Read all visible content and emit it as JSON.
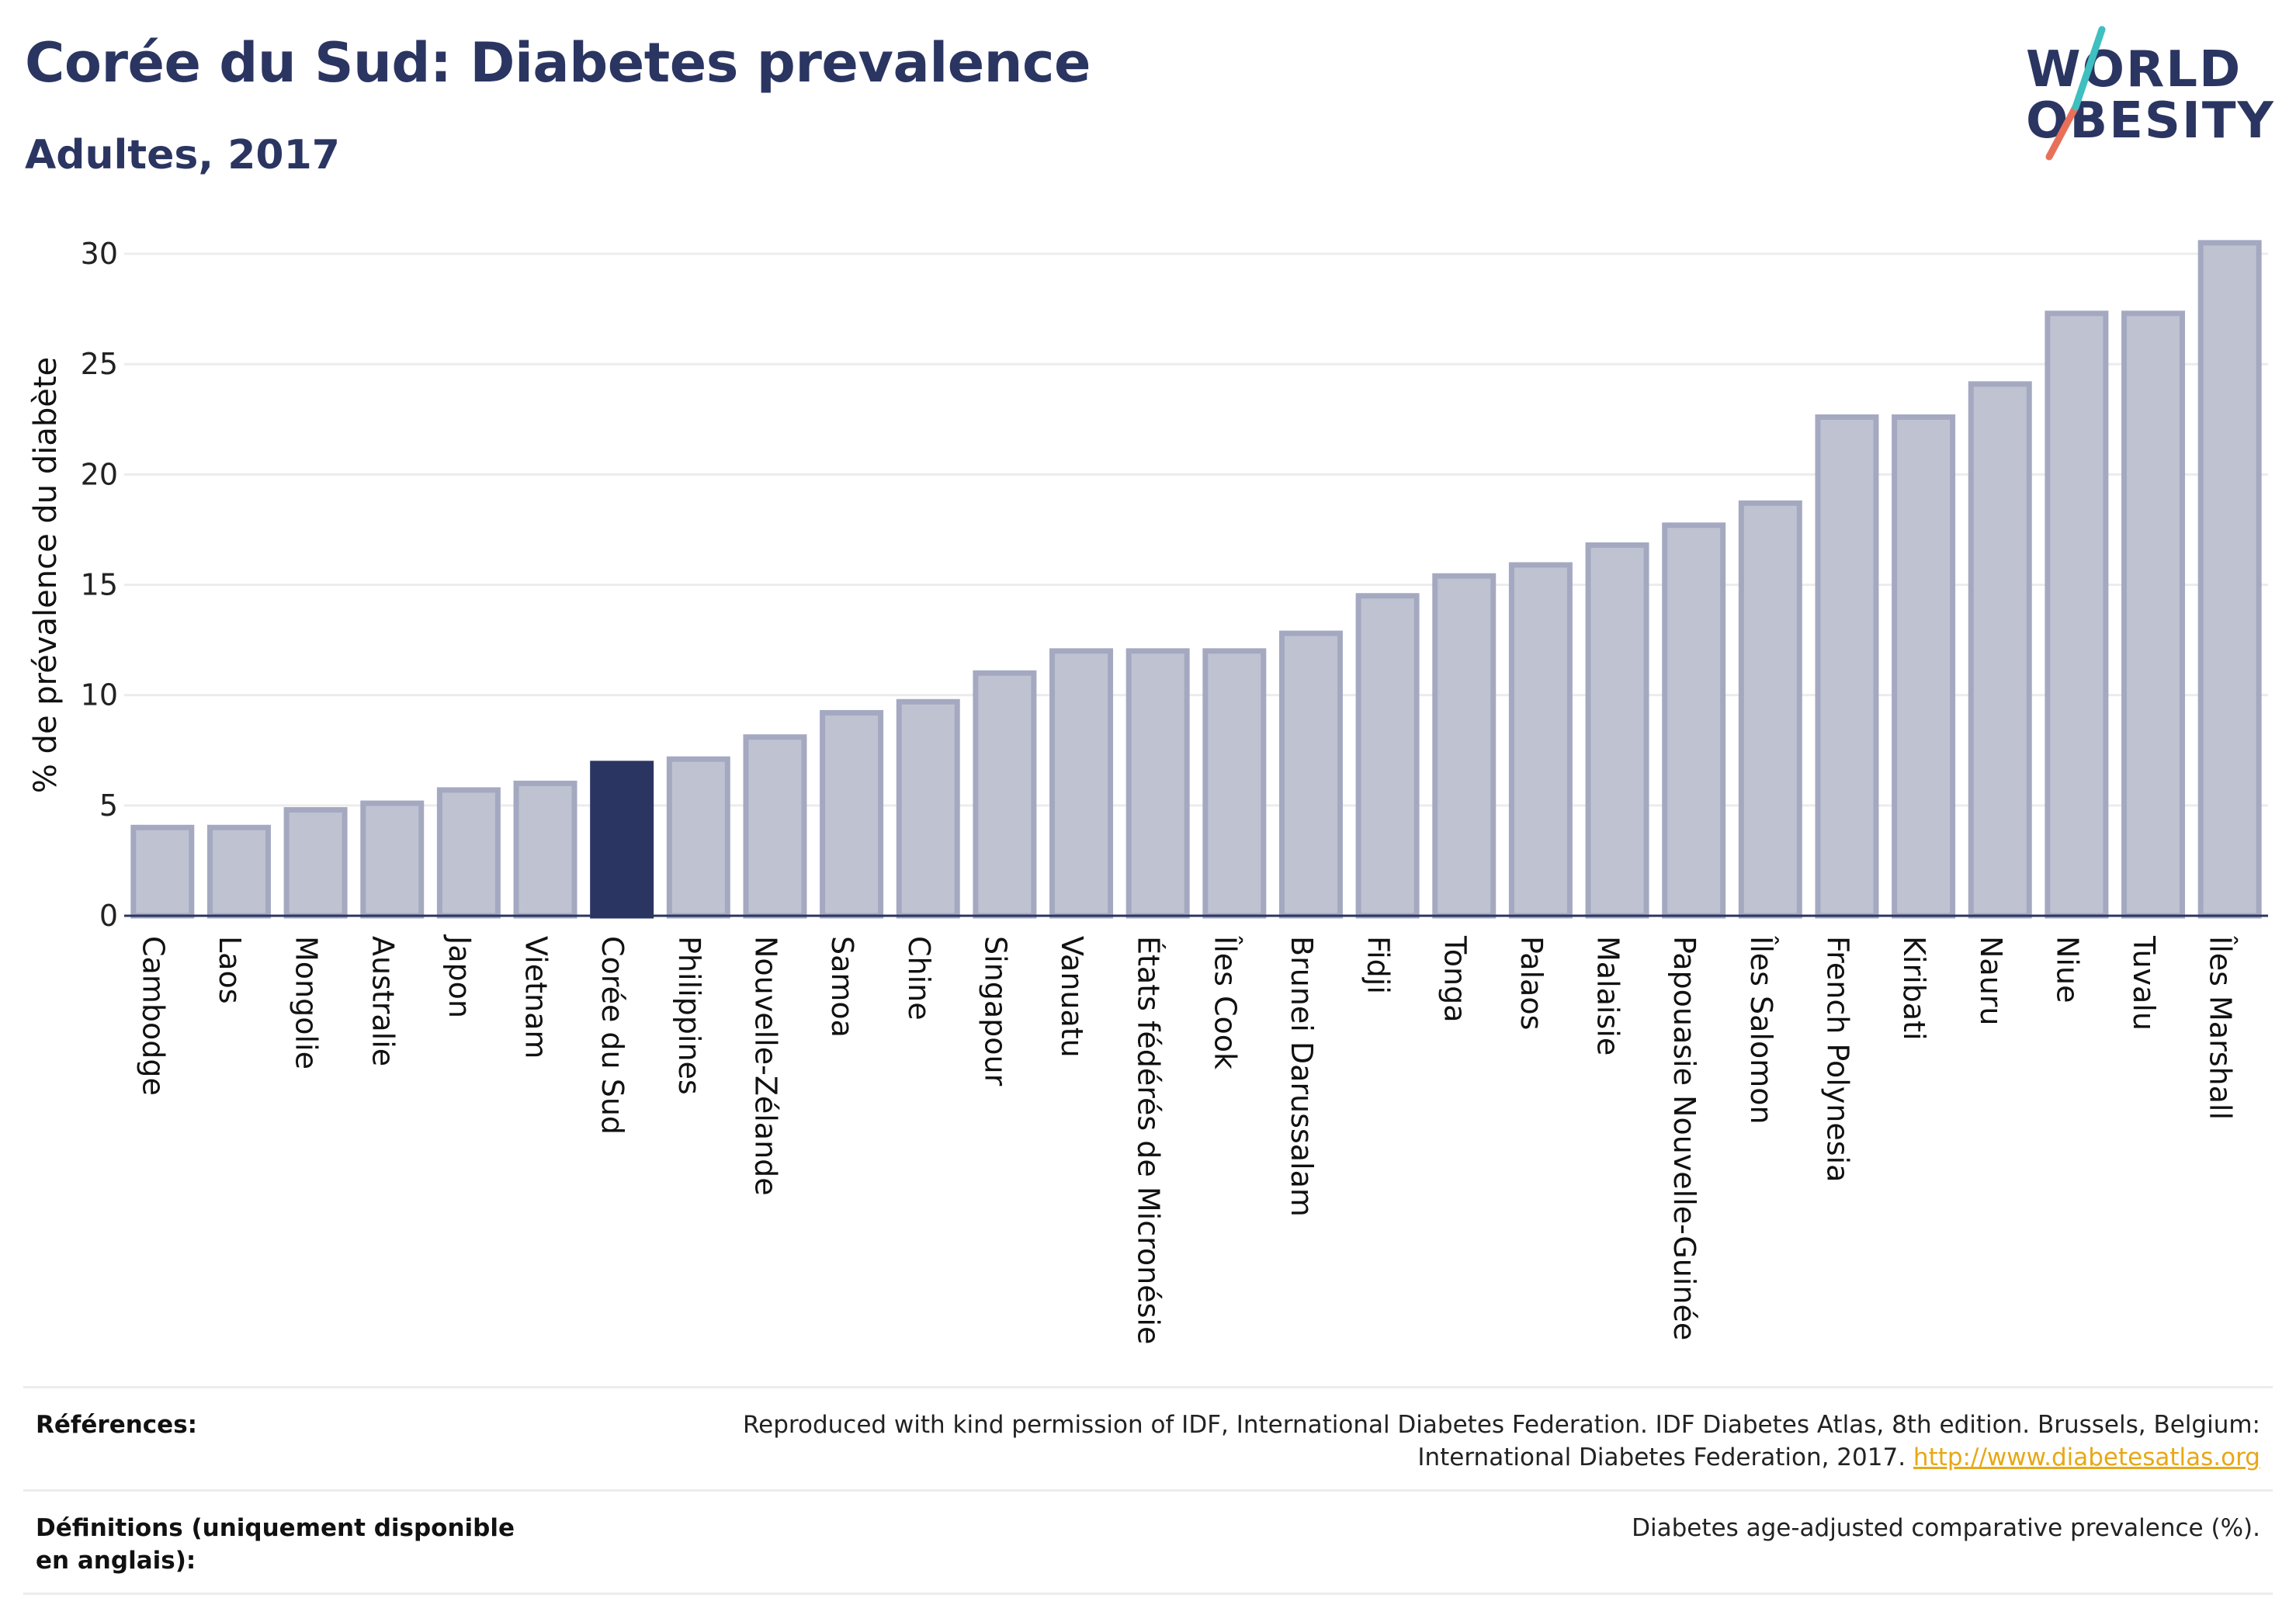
{
  "header": {
    "title": "Corée du Sud: Diabetes prevalence",
    "subtitle": "Adultes, 2017"
  },
  "logo": {
    "line1": "WORLD",
    "line2": "OBESITY",
    "accent_colors": [
      "#3fbfbf",
      "#e8705a"
    ]
  },
  "colors": {
    "bar_default": "#bfc3d1",
    "bar_default_stroke": "#a4a9c1",
    "bar_highlight": "#2b3561",
    "text_dark": "#2b3561",
    "link": "#e6a817",
    "grid": "#ececec"
  },
  "chart_data": {
    "type": "bar",
    "ylabel": "% de prévalence du diabète",
    "ylim": [
      0,
      30.6
    ],
    "yticks": [
      0,
      5,
      10,
      15,
      20,
      25,
      30
    ],
    "grid": true,
    "highlight": "Corée du Sud",
    "categories": [
      "Cambodge",
      "Laos",
      "Mongolie",
      "Australie",
      "Japon",
      "Vietnam",
      "Corée du Sud",
      "Philippines",
      "Nouvelle-Zélande",
      "Samoa",
      "Chine",
      "Singapour",
      "Vanuatu",
      "États fédérés de Micronésie",
      "Îles Cook",
      "Brunei Darussalam",
      "Fidji",
      "Tonga",
      "Palaos",
      "Malaisie",
      "Papouasie Nouvelle-Guinée",
      "Îles Salomon",
      "French Polynesia",
      "Kiribati",
      "Nauru",
      "Niue",
      "Tuvalu",
      "Îles Marshall"
    ],
    "values": [
      4.0,
      4.0,
      4.8,
      5.1,
      5.7,
      6.0,
      6.9,
      7.1,
      8.1,
      9.2,
      9.7,
      11.0,
      12.0,
      12.0,
      12.0,
      12.8,
      14.5,
      15.4,
      15.9,
      16.8,
      17.7,
      18.7,
      22.6,
      22.6,
      24.1,
      27.3,
      27.3,
      30.5
    ]
  },
  "footer": {
    "references_label": "Références:",
    "references_text": "Reproduced with kind permission of IDF, International Diabetes Federation. IDF Diabetes Atlas, 8th edition. Brussels, Belgium: International Diabetes Federation, 2017.",
    "references_link": "http://www.diabetesatlas.org",
    "definitions_label": "Définitions (uniquement disponible en anglais):",
    "definitions_text": "Diabetes age-adjusted comparative prevalence (%)."
  }
}
